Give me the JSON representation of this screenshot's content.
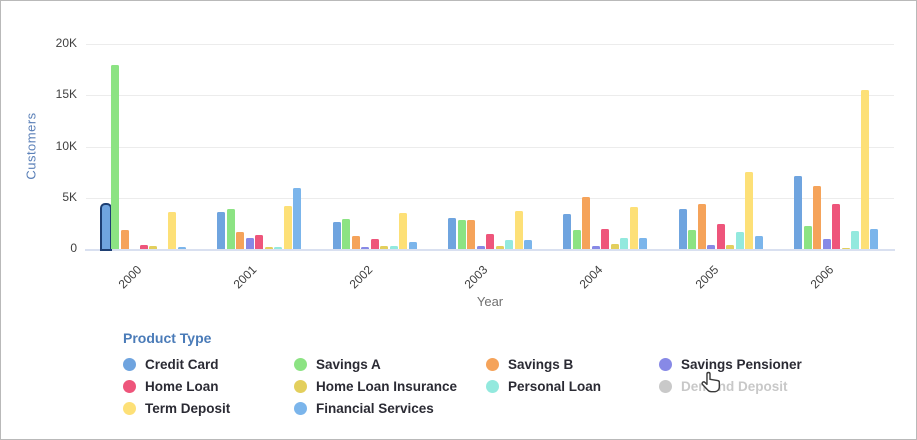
{
  "chart_data": {
    "type": "bar",
    "xlabel": "Year",
    "ylabel": "Customers",
    "ylim": [
      0,
      20000
    ],
    "yticks": [
      "0",
      "5K",
      "10K",
      "15K",
      "20K"
    ],
    "ytick_values": [
      0,
      5000,
      10000,
      15000,
      20000
    ],
    "grid": "horizontal",
    "categories": [
      "2000",
      "2001",
      "2002",
      "2003",
      "2004",
      "2005",
      "2006"
    ],
    "series": [
      {
        "name": "Credit Card",
        "color": "#6FA4DF",
        "values": [
          4300,
          3600,
          2600,
          3000,
          3400,
          3900,
          7100
        ]
      },
      {
        "name": "Savings A",
        "color": "#8CE383",
        "values": [
          18000,
          3900,
          2900,
          2800,
          1900,
          1900,
          2200
        ]
      },
      {
        "name": "Savings B",
        "color": "#F5A35A",
        "values": [
          1900,
          1700,
          1300,
          2800,
          5100,
          4400,
          6100
        ]
      },
      {
        "name": "Savings Pensioner",
        "color": "#8789E6",
        "values": [
          50,
          1100,
          200,
          300,
          300,
          400,
          1000
        ]
      },
      {
        "name": "Home Loan",
        "color": "#EE557B",
        "values": [
          400,
          1400,
          1000,
          1500,
          2000,
          2400,
          4400
        ]
      },
      {
        "name": "Home Loan Insurance",
        "color": "#E3CF5D",
        "values": [
          250,
          150,
          250,
          300,
          500,
          350,
          100
        ]
      },
      {
        "name": "Personal Loan",
        "color": "#93E9DE",
        "values": [
          30,
          200,
          250,
          850,
          1100,
          1700,
          1800
        ]
      },
      {
        "name": "Term Deposit",
        "color": "#FDE077",
        "values": [
          3600,
          4200,
          3500,
          3700,
          4100,
          7500,
          15500
        ]
      },
      {
        "name": "Financial Services",
        "color": "#7BB5EB",
        "values": [
          150,
          6000,
          700,
          900,
          1100,
          1300,
          2000
        ]
      }
    ],
    "highlight": {
      "series": "Credit Card",
      "category": "2000",
      "border_color": "#1E3F73"
    },
    "legend_title": "Product Type",
    "legend_position": "bottom",
    "legend_items": [
      {
        "label": "Credit Card",
        "color": "#6FA4DF",
        "disabled": false
      },
      {
        "label": "Savings A",
        "color": "#8CE383",
        "disabled": false
      },
      {
        "label": "Savings B",
        "color": "#F5A35A",
        "disabled": false
      },
      {
        "label": "Savings Pensioner",
        "color": "#8789E6",
        "disabled": false
      },
      {
        "label": "Home Loan",
        "color": "#EE557B",
        "disabled": false
      },
      {
        "label": "Home Loan Insurance",
        "color": "#E3CF5D",
        "disabled": false
      },
      {
        "label": "Personal Loan",
        "color": "#93E9DE",
        "disabled": false
      },
      {
        "label": "Demand Deposit",
        "color": "#C9C9C9",
        "disabled": true
      },
      {
        "label": "Term Deposit",
        "color": "#FDE077",
        "disabled": false
      },
      {
        "label": "Financial Services",
        "color": "#7BB5EB",
        "disabled": false
      }
    ],
    "cursor": {
      "type": "hand-pointer",
      "over": "Demand Deposit"
    }
  }
}
